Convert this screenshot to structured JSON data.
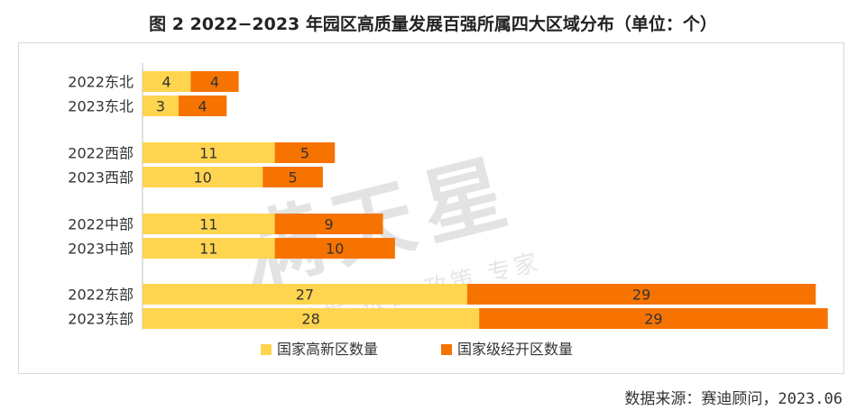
{
  "title": "图 2 2022−2023 年园区高质量发展百强所属四大区域分布（单位：个）",
  "source": "数据来源：赛迪顾问，2023.06",
  "watermark": {
    "main": "满天星",
    "sub": "数据 报告 政策 专家"
  },
  "colors": {
    "high_tech": "#ffd44f",
    "economic": "#f77300"
  },
  "chart_data": {
    "type": "bar",
    "orientation": "horizontal",
    "stacked": true,
    "title": "图 2 2022−2023 年园区高质量发展百强所属四大区域分布（单位：个）",
    "xlabel": "",
    "ylabel": "",
    "xlim": [
      0,
      58
    ],
    "grid": false,
    "legend_position": "bottom",
    "categories": [
      "2022东北",
      "2023东北",
      "2022西部",
      "2023西部",
      "2022中部",
      "2023中部",
      "2022东部",
      "2023东部"
    ],
    "groups": [
      [
        0,
        1
      ],
      [
        2,
        3
      ],
      [
        4,
        5
      ],
      [
        6,
        7
      ]
    ],
    "series": [
      {
        "name": "国家高新区数量",
        "color": "#ffd44f",
        "values": [
          4,
          3,
          11,
          10,
          11,
          11,
          27,
          28
        ]
      },
      {
        "name": "国家级经开区数量",
        "color": "#f77300",
        "values": [
          4,
          4,
          5,
          5,
          9,
          10,
          29,
          29
        ]
      }
    ]
  }
}
